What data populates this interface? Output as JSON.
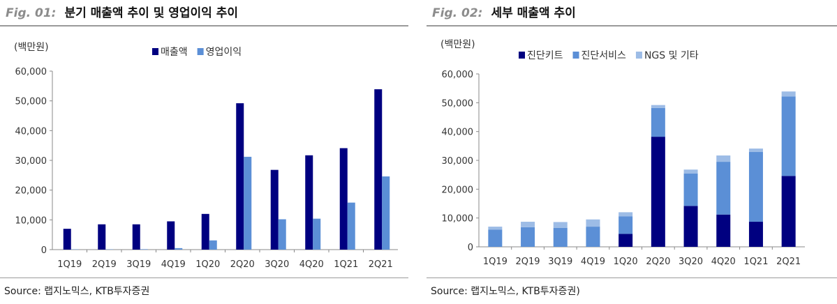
{
  "charts": [
    {
      "fig_label": "Fig. 01:",
      "title": "분기 매출액 추이 및 영업이익 추이",
      "source": "Source: 랩지노믹스, KTB투자증권",
      "unit_label": "(백만원)",
      "colors": [
        "#000080",
        "#5b8fd6"
      ]
    },
    {
      "fig_label": "Fig. 02:",
      "title": "세부 매출액 추이",
      "source": "Source: 랩지노믹스, KTB투자증권)",
      "unit_label": "(백만원)",
      "colors": [
        "#000080",
        "#5b8fd6",
        "#9dbce6"
      ]
    }
  ],
  "chart_data": [
    {
      "type": "bar",
      "categories": [
        "1Q19",
        "2Q19",
        "3Q19",
        "4Q19",
        "1Q20",
        "2Q20",
        "3Q20",
        "4Q20",
        "1Q21",
        "2Q21"
      ],
      "series": [
        {
          "name": "매출액",
          "values": [
            7000,
            8500,
            8500,
            9500,
            12000,
            49200,
            26800,
            31700,
            34100,
            53900
          ]
        },
        {
          "name": "영업이익",
          "values": [
            100,
            100,
            150,
            500,
            3100,
            31200,
            10200,
            10400,
            15800,
            24600
          ]
        }
      ],
      "yticks": [
        "60,000",
        "50,000",
        "40,000",
        "30,000",
        "20,000",
        "10,000",
        "0"
      ],
      "ylim": [
        0,
        60000
      ],
      "legend": "top"
    },
    {
      "type": "bar",
      "stacked": true,
      "categories": [
        "1Q19",
        "2Q19",
        "3Q19",
        "4Q19",
        "1Q20",
        "2Q20",
        "3Q20",
        "4Q20",
        "1Q21",
        "2Q21"
      ],
      "series": [
        {
          "name": "진단키트",
          "values": [
            0,
            0,
            0,
            0,
            4500,
            38200,
            14200,
            11200,
            8700,
            24600
          ]
        },
        {
          "name": "진단서비스",
          "values": [
            6000,
            6800,
            6600,
            7000,
            6100,
            10000,
            11200,
            18300,
            24200,
            27600
          ]
        },
        {
          "name": "NGS 및 기타",
          "values": [
            1000,
            1900,
            2000,
            2500,
            1400,
            1000,
            1400,
            2200,
            1200,
            1700
          ]
        }
      ],
      "yticks": [
        "60,000",
        "50,000",
        "40,000",
        "30,000",
        "20,000",
        "10,000",
        "0"
      ],
      "ylim": [
        0,
        60000
      ],
      "legend": "top"
    }
  ]
}
